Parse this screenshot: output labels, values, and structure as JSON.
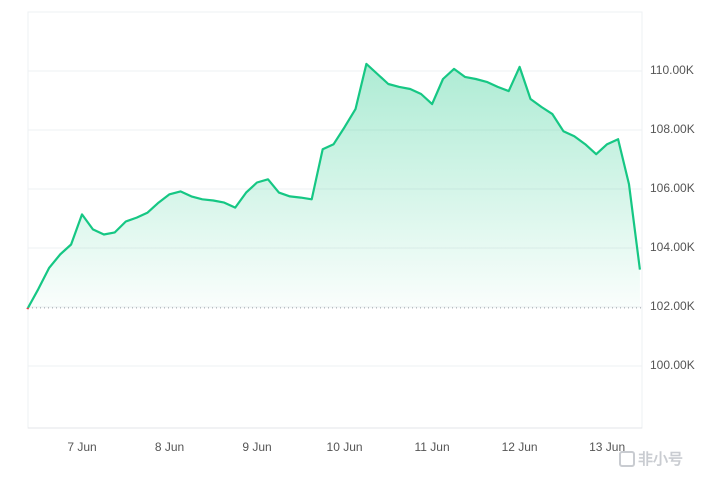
{
  "chart_data": {
    "type": "line",
    "categories": [
      null,
      null,
      null,
      null,
      null,
      "7 Jun",
      null,
      null,
      null,
      null,
      null,
      null,
      null,
      "8 Jun",
      null,
      null,
      null,
      null,
      null,
      null,
      null,
      "9 Jun",
      null,
      null,
      null,
      null,
      null,
      null,
      null,
      "10 Jun",
      null,
      null,
      null,
      null,
      null,
      null,
      null,
      "11 Jun",
      null,
      null,
      null,
      null,
      null,
      null,
      null,
      "12 Jun",
      null,
      null,
      null,
      null,
      null,
      null,
      null,
      "13 Jun",
      null,
      null,
      null
    ],
    "series": [
      {
        "color": "#16c784",
        "down_color": "#ea3943",
        "values": [
          101930,
          102600,
          103330,
          103780,
          104120,
          105140,
          104630,
          104460,
          104530,
          104900,
          105030,
          105200,
          105540,
          105820,
          105920,
          105750,
          105650,
          105610,
          105540,
          105370,
          105880,
          106220,
          106330,
          105880,
          105750,
          105710,
          105650,
          107350,
          107520,
          108100,
          108710,
          110240,
          109900,
          109560,
          109460,
          109390,
          109220,
          108880,
          109730,
          110070,
          109800,
          109730,
          109630,
          109460,
          109320,
          110140,
          109050,
          108780,
          108540,
          107960,
          107790,
          107520,
          107180,
          107520,
          107690,
          106160,
          103270
        ]
      }
    ],
    "baseline": 101970,
    "ylim": [
      97900,
      112000
    ],
    "yticks": [
      {
        "value": 100000,
        "label": "100.00K"
      },
      {
        "value": 102000,
        "label": "102.00K"
      },
      {
        "value": 104000,
        "label": "104.00K"
      },
      {
        "value": 106000,
        "label": "106.00K"
      },
      {
        "value": 108000,
        "label": "108.00K"
      },
      {
        "value": 110000,
        "label": "110.00K"
      }
    ],
    "grid": true
  },
  "watermark": "非小号"
}
